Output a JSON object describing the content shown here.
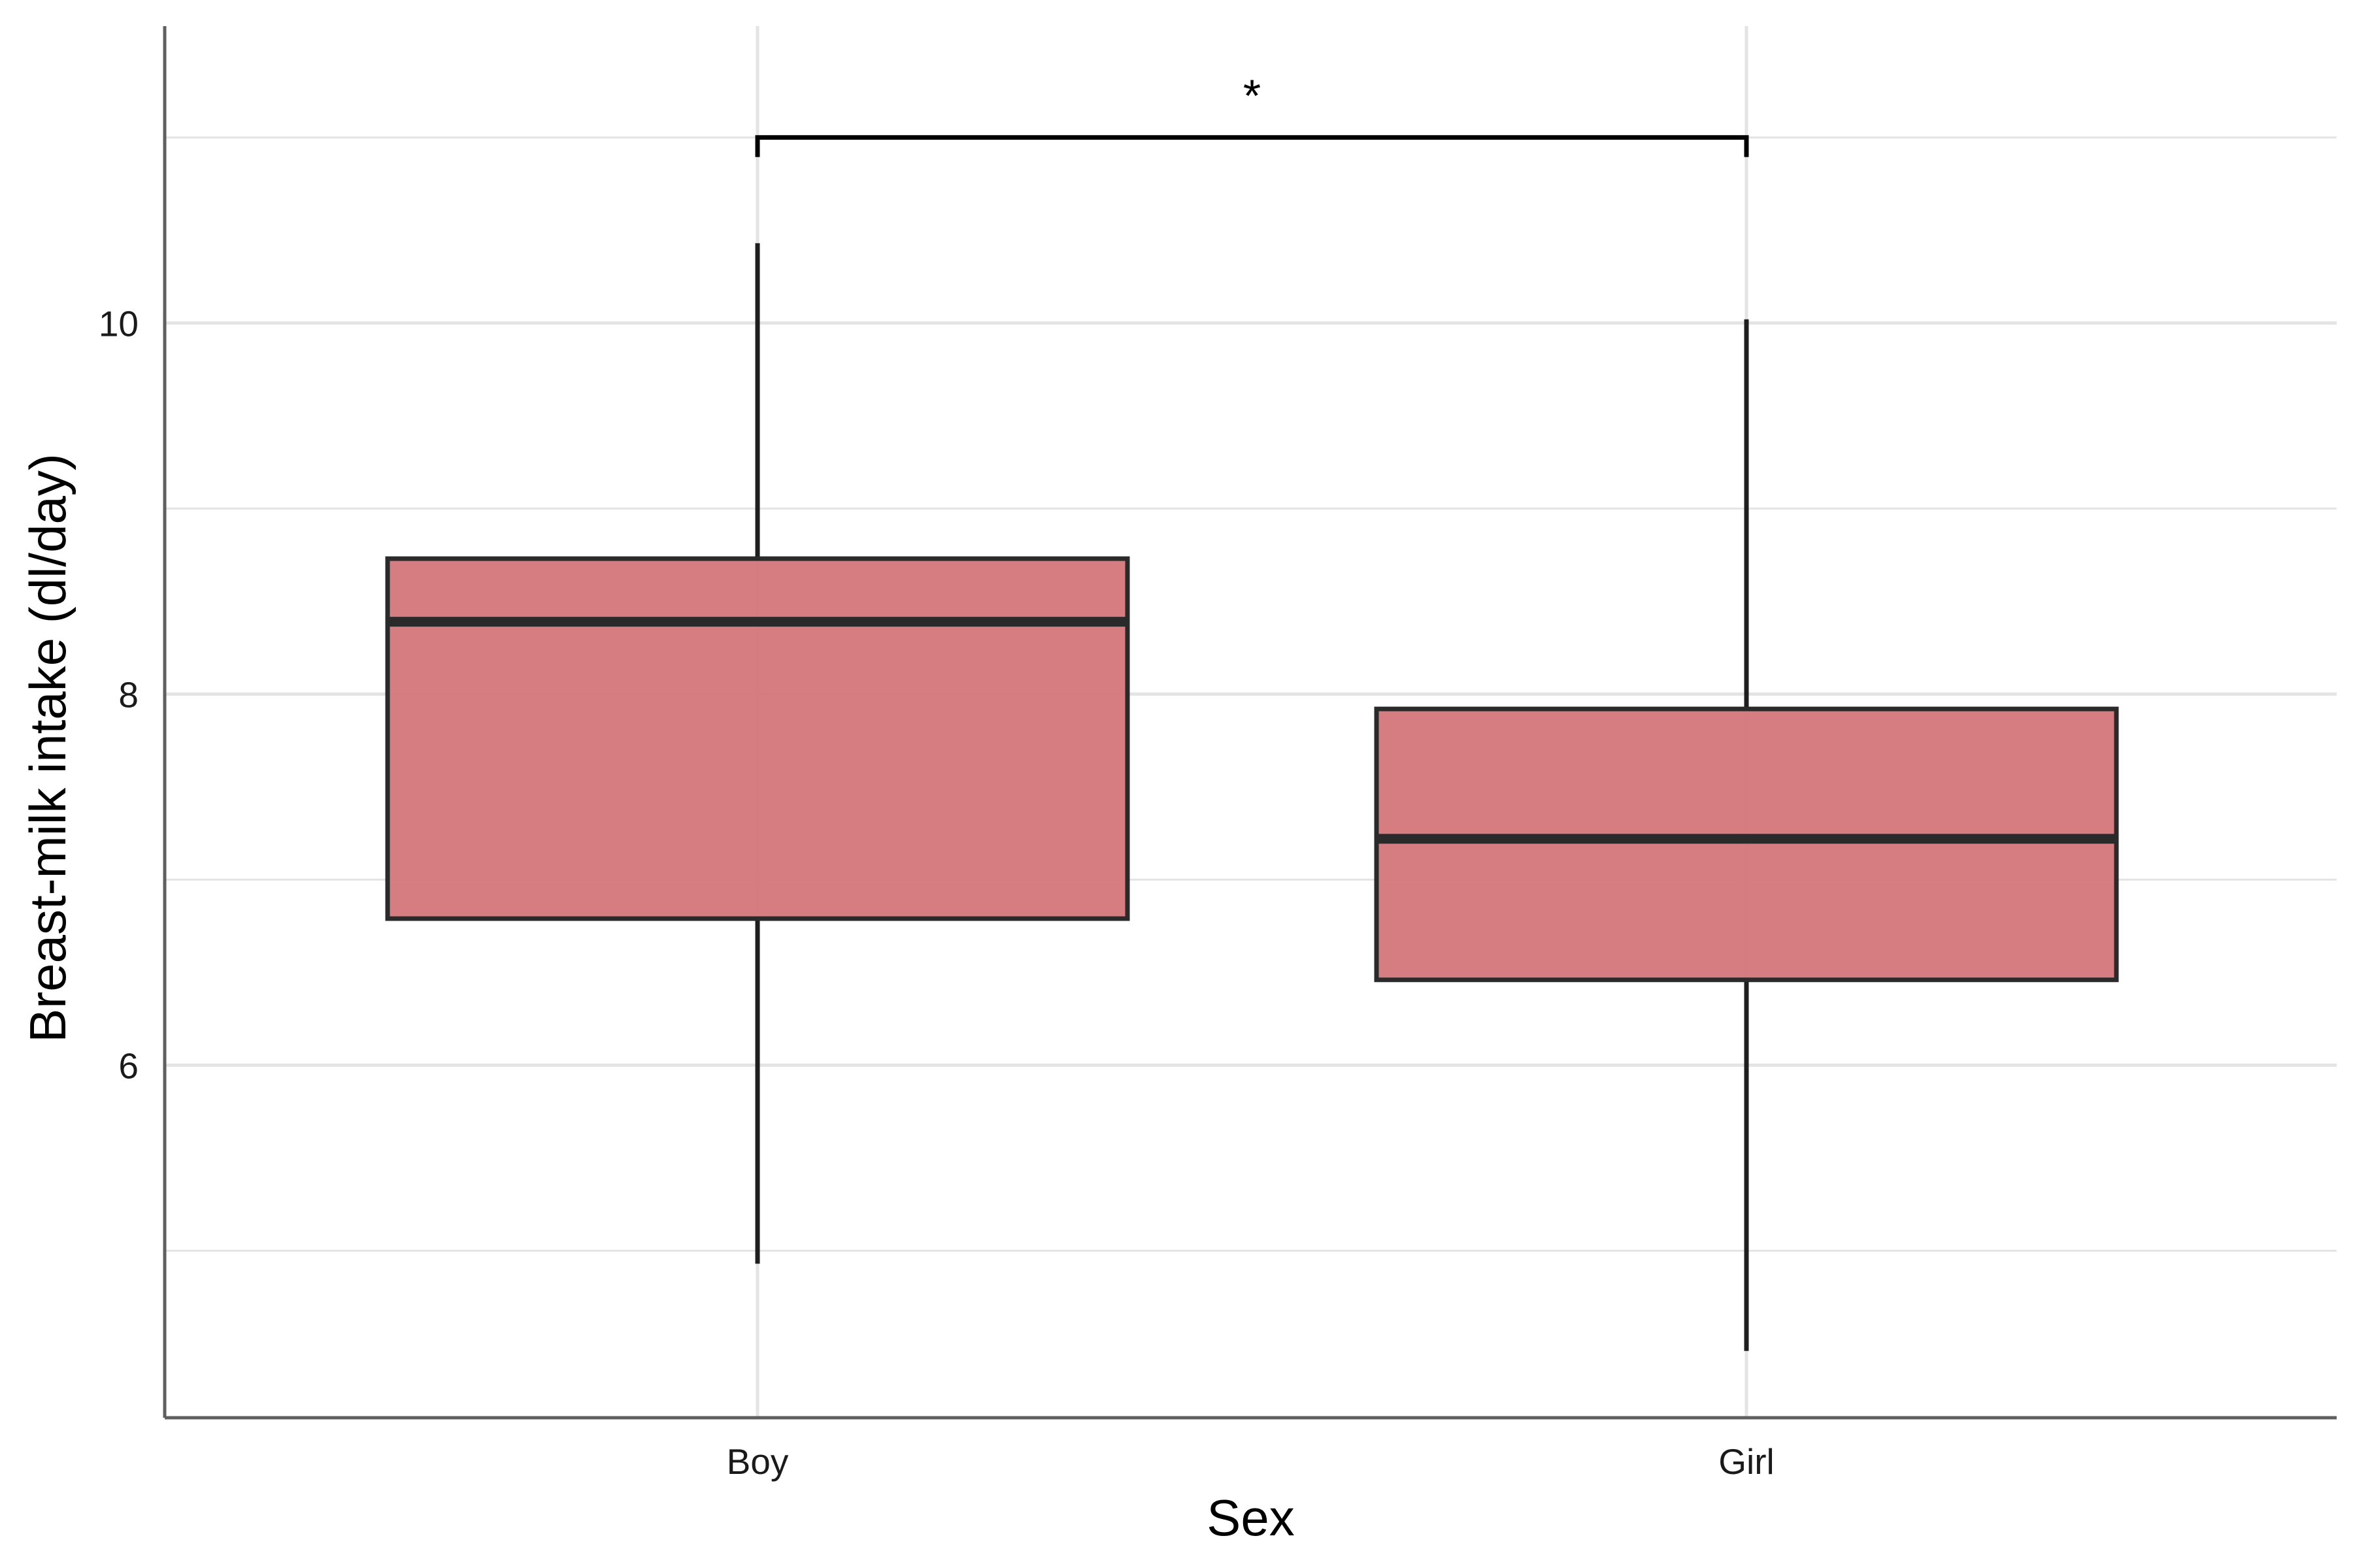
{
  "chart_data": {
    "type": "box",
    "title": "",
    "xlabel": "Sex",
    "ylabel": "Breast-milk intake (dl/day)",
    "categories": [
      "Boy",
      "Girl"
    ],
    "boxes": [
      {
        "name": "Boy",
        "whisker_low": 4.93,
        "q1": 6.79,
        "median": 8.39,
        "q3": 8.73,
        "whisker_high": 10.43
      },
      {
        "name": "Girl",
        "whisker_low": 4.46,
        "q1": 6.46,
        "median": 7.22,
        "q3": 7.92,
        "whisker_high": 10.02
      }
    ],
    "ylim": [
      4.1,
      11.6
    ],
    "yticks": [
      6,
      8,
      10
    ],
    "ytick_labels": [
      "6",
      "8",
      "10"
    ],
    "y_minor_gridlines": [
      5,
      7,
      9,
      11
    ],
    "grid": true,
    "significance": {
      "between": [
        "Boy",
        "Girl"
      ],
      "y": 11.0,
      "label": "*"
    },
    "colors": {
      "box_fill": "#d4767a",
      "box_stroke": "#2a2a2a",
      "grid": "#e4e4e4",
      "axis": "#5f5f5f"
    }
  }
}
